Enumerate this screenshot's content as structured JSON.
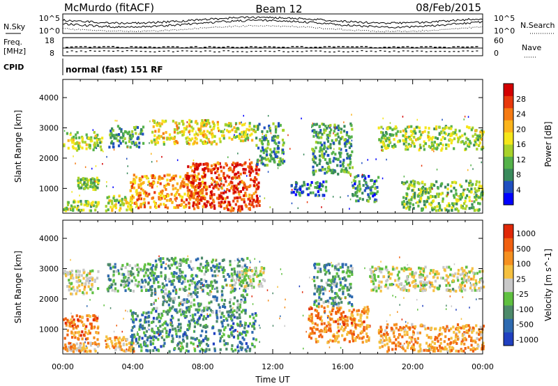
{
  "header": {
    "station": "McMurdo (fitACF)",
    "beam": "Beam 12",
    "date": "08/Feb/2015"
  },
  "side_labels": {
    "nsky": "N.Sky",
    "nsearch": "N.Search",
    "freq_line1": "Freq.",
    "freq_line2": "[MHz]",
    "nave": "Nave",
    "cpid": "CPID",
    "mode": "normal (fast) 151 RF"
  },
  "noise_axis": {
    "ticks": [
      "10^5",
      "10^0"
    ]
  },
  "freq_axis": {
    "left_ticks": [
      "18",
      "8"
    ],
    "right_ticks": [
      "60",
      "0"
    ]
  },
  "chart_data": [
    {
      "type": "heatmap",
      "name": "power",
      "xlabel": "",
      "ylabel": "Slant Range [km]",
      "xlim": [
        0,
        24
      ],
      "ylim": [
        180,
        4600
      ],
      "y_ticks": [
        1000,
        2000,
        3000,
        4000
      ],
      "colorbar": {
        "label": "Power [dB]",
        "ticks": [
          "4",
          "8",
          "12",
          "16",
          "20",
          "24",
          "28"
        ],
        "colors": [
          "#0000ff",
          "#1f4fc0",
          "#3a8a5c",
          "#55b24a",
          "#a8d22a",
          "#f5e61a",
          "#fbb41c",
          "#f57a12",
          "#e8380c",
          "#d30000"
        ]
      },
      "blobs": [
        {
          "t0": 0.0,
          "t1": 2.2,
          "r0": 2300,
          "r1": 2900,
          "level": 0.45
        },
        {
          "t0": 0.0,
          "t1": 2.0,
          "r0": 300,
          "r1": 650,
          "level": 0.45
        },
        {
          "t0": 0.8,
          "t1": 2.0,
          "r0": 1000,
          "r1": 1400,
          "level": 0.4
        },
        {
          "t0": 2.4,
          "t1": 4.0,
          "r0": 300,
          "r1": 800,
          "level": 0.5
        },
        {
          "t0": 2.6,
          "t1": 4.6,
          "r0": 2400,
          "r1": 3100,
          "level": 0.3
        },
        {
          "t0": 3.8,
          "t1": 8.2,
          "r0": 400,
          "r1": 1500,
          "level": 0.7
        },
        {
          "t0": 5.0,
          "t1": 9.0,
          "r0": 2500,
          "r1": 3300,
          "level": 0.55
        },
        {
          "t0": 7.0,
          "t1": 11.2,
          "r0": 300,
          "r1": 1900,
          "level": 0.85
        },
        {
          "t0": 9.0,
          "t1": 11.0,
          "r0": 2600,
          "r1": 3200,
          "level": 0.5
        },
        {
          "t0": 11.0,
          "t1": 12.6,
          "r0": 1800,
          "r1": 3200,
          "level": 0.3
        },
        {
          "t0": 13.0,
          "t1": 15.0,
          "r0": 800,
          "r1": 1300,
          "level": 0.2
        },
        {
          "t0": 14.2,
          "t1": 16.5,
          "r0": 1500,
          "r1": 3200,
          "level": 0.3
        },
        {
          "t0": 16.5,
          "t1": 18.0,
          "r0": 600,
          "r1": 1500,
          "level": 0.25
        },
        {
          "t0": 18.0,
          "t1": 24.0,
          "r0": 2300,
          "r1": 3100,
          "level": 0.45
        },
        {
          "t0": 19.3,
          "t1": 24.0,
          "r0": 300,
          "r1": 1300,
          "level": 0.4
        }
      ]
    },
    {
      "type": "heatmap",
      "name": "velocity",
      "xlabel": "Time UT",
      "ylabel": "Slant Range [km]",
      "xlim": [
        0,
        24
      ],
      "ylim": [
        180,
        4600
      ],
      "x_ticks": [
        "00:00",
        "04:00",
        "08:00",
        "12:00",
        "16:00",
        "20:00",
        "00:00"
      ],
      "y_ticks": [
        1000,
        2000,
        3000,
        4000
      ],
      "colorbar": {
        "label": "Velocity [m s^-1]",
        "ticks": [
          "1000",
          "500",
          "100",
          "25",
          "-25",
          "-100",
          "-500",
          "-1000"
        ],
        "colors": [
          "#2040c0",
          "#2e6ab0",
          "#4d8a6a",
          "#5fc040",
          "#c8c8c8",
          "#f5c040",
          "#f59020",
          "#f06010",
          "#e02808"
        ]
      },
      "blobs": [
        {
          "t0": 0.0,
          "t1": 2.0,
          "r0": 2200,
          "r1": 3000,
          "level": 0.5
        },
        {
          "t0": 0.0,
          "t1": 2.0,
          "r0": 700,
          "r1": 1500,
          "level": 0.75
        },
        {
          "t0": 0.0,
          "t1": 2.0,
          "r0": 300,
          "r1": 600,
          "level": 0.65
        },
        {
          "t0": 2.4,
          "t1": 4.0,
          "r0": 300,
          "r1": 800,
          "level": 0.65
        },
        {
          "t0": 2.5,
          "t1": 5.0,
          "r0": 2300,
          "r1": 3200,
          "level": 0.35
        },
        {
          "t0": 3.8,
          "t1": 11.0,
          "r0": 300,
          "r1": 1700,
          "level": 0.25
        },
        {
          "t0": 5.0,
          "t1": 10.5,
          "r0": 1600,
          "r1": 3400,
          "level": 0.3
        },
        {
          "t0": 9.5,
          "t1": 11.5,
          "r0": 2400,
          "r1": 3100,
          "level": 0.5
        },
        {
          "t0": 14.0,
          "t1": 17.5,
          "r0": 600,
          "r1": 1800,
          "level": 0.75
        },
        {
          "t0": 14.3,
          "t1": 16.5,
          "r0": 1800,
          "r1": 3200,
          "level": 0.3
        },
        {
          "t0": 17.5,
          "t1": 24.0,
          "r0": 2300,
          "r1": 3100,
          "level": 0.5
        },
        {
          "t0": 18.0,
          "t1": 24.0,
          "r0": 300,
          "r1": 1200,
          "level": 0.7
        }
      ]
    }
  ]
}
